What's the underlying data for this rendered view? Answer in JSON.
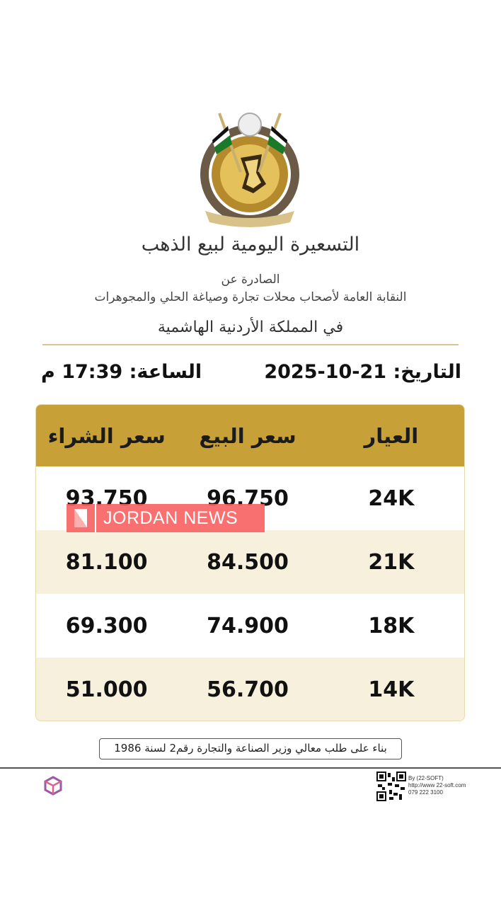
{
  "header": {
    "title": "التسعيرة اليومية لبيع الذهب",
    "issued_by_label": "الصادرة عن",
    "issuer": "النقابة العامة لأصحاب محلات تجارة وصياغة الحلي والمجوهرات",
    "country": "في المملكة الأردنية الهاشمية"
  },
  "datetime": {
    "date_label": "التاريخ:",
    "date": "21-10-2025",
    "time_label": "الساعة:",
    "time": "17:39 م"
  },
  "table": {
    "columns": [
      "العيار",
      "سعر البيع",
      "سعر الشراء"
    ],
    "rows": [
      {
        "karat": "24K",
        "sell": "96.750",
        "buy": "93.750"
      },
      {
        "karat": "21K",
        "sell": "84.500",
        "buy": "81.100"
      },
      {
        "karat": "18K",
        "sell": "74.900",
        "buy": "69.300"
      },
      {
        "karat": "14K",
        "sell": "56.700",
        "buy": "51.000"
      }
    ]
  },
  "watermark": {
    "text": "JORDAN NEWS",
    "color": "#f86060"
  },
  "note": "بناء على طلب معالي وزير الصناعة والتجارة رقم2 لسنة 1986",
  "footer": {
    "credit_lines": [
      "By (22-SOFT)",
      "http://www 22-soft.com",
      "079 222 3100"
    ]
  },
  "colors": {
    "header_gold": "#c8a038",
    "row_alt": "#f7f0dd"
  }
}
